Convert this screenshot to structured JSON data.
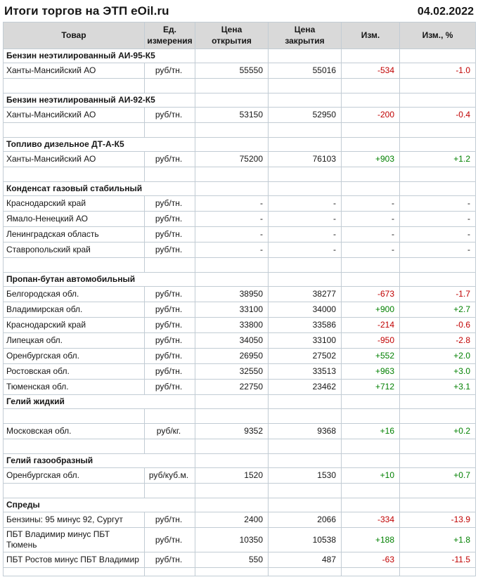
{
  "header": {
    "title": "Итоги торгов на ЭТП eOil.ru",
    "date": "04.02.2022"
  },
  "colors": {
    "negative": "#c00000",
    "positive": "#008000"
  },
  "table": {
    "columns": [
      "Товар",
      "Ед.\nизмерения",
      "Цена\nоткрытия",
      "Цена\nзакрытия",
      "Изм.",
      "Изм., %"
    ],
    "sections": [
      {
        "name": "Бензин неэтилированный АИ-95-К5",
        "spacer_before": false,
        "spacer_after_name": false,
        "rows": [
          {
            "product": "Ханты-Мансийский АО",
            "unit": "руб/тн.",
            "open": "55550",
            "close": "55016",
            "change": "-534",
            "change_pct": "-1.0"
          }
        ]
      },
      {
        "name": "Бензин неэтилированный АИ-92-К5",
        "spacer_before": true,
        "spacer_after_name": false,
        "rows": [
          {
            "product": "Ханты-Мансийский АО",
            "unit": "руб/тн.",
            "open": "53150",
            "close": "52950",
            "change": "-200",
            "change_pct": "-0.4"
          }
        ]
      },
      {
        "name": "Топливо дизельное ДТ-А-К5",
        "spacer_before": true,
        "spacer_after_name": false,
        "rows": [
          {
            "product": "Ханты-Мансийский АО",
            "unit": "руб/тн.",
            "open": "75200",
            "close": "76103",
            "change": "+903",
            "change_pct": "+1.2"
          }
        ]
      },
      {
        "name": "Конденсат газовый стабильный",
        "spacer_before": true,
        "spacer_after_name": false,
        "rows": [
          {
            "product": "Краснодарский край",
            "unit": "руб/тн.",
            "open": "-",
            "close": "-",
            "change": "-",
            "change_pct": "-"
          },
          {
            "product": "Ямало-Ненецкий АО",
            "unit": "руб/тн.",
            "open": "-",
            "close": "-",
            "change": "-",
            "change_pct": "-"
          },
          {
            "product": "Ленинградская область",
            "unit": "руб/тн.",
            "open": "-",
            "close": "-",
            "change": "-",
            "change_pct": "-"
          },
          {
            "product": "Ставропольский край",
            "unit": "руб/тн.",
            "open": "-",
            "close": "-",
            "change": "-",
            "change_pct": "-"
          }
        ]
      },
      {
        "name": "Пропан-бутан автомобильный",
        "spacer_before": true,
        "spacer_after_name": false,
        "rows": [
          {
            "product": "Белгородская обл.",
            "unit": "руб/тн.",
            "open": "38950",
            "close": "38277",
            "change": "-673",
            "change_pct": "-1.7"
          },
          {
            "product": "Владимирская обл.",
            "unit": "руб/тн.",
            "open": "33100",
            "close": "34000",
            "change": "+900",
            "change_pct": "+2.7"
          },
          {
            "product": "Краснодарский край",
            "unit": "руб/тн.",
            "open": "33800",
            "close": "33586",
            "change": "-214",
            "change_pct": "-0.6"
          },
          {
            "product": "Липецкая обл.",
            "unit": "руб/тн.",
            "open": "34050",
            "close": "33100",
            "change": "-950",
            "change_pct": "-2.8"
          },
          {
            "product": "Оренбургская обл.",
            "unit": "руб/тн.",
            "open": "26950",
            "close": "27502",
            "change": "+552",
            "change_pct": "+2.0"
          },
          {
            "product": "Ростовская обл.",
            "unit": "руб/тн.",
            "open": "32550",
            "close": "33513",
            "change": "+963",
            "change_pct": "+3.0"
          },
          {
            "product": "Тюменская обл.",
            "unit": "руб/тн.",
            "open": "22750",
            "close": "23462",
            "change": "+712",
            "change_pct": "+3.1"
          }
        ]
      },
      {
        "name": "Гелий жидкий",
        "spacer_before": false,
        "spacer_after_name": true,
        "rows": [
          {
            "product": "Московская обл.",
            "unit": "руб/кг.",
            "open": "9352",
            "close": "9368",
            "change": "+16",
            "change_pct": "+0.2"
          }
        ]
      },
      {
        "name": "Гелий газообразный",
        "spacer_before": true,
        "spacer_after_name": false,
        "rows": [
          {
            "product": "Оренбургская обл.",
            "unit": "руб/куб.м.",
            "open": "1520",
            "close": "1530",
            "change": "+10",
            "change_pct": "+0.7"
          }
        ]
      },
      {
        "name": "Спреды",
        "spacer_before": true,
        "spacer_after_name": false,
        "rows": [
          {
            "product": "Бензины: 95 минус 92, Сургут",
            "unit": "руб/тн.",
            "open": "2400",
            "close": "2066",
            "change": "-334",
            "change_pct": "-13.9"
          },
          {
            "product": "ПБТ Владимир минус ПБТ Тюмень",
            "unit": "руб/тн.",
            "open": "10350",
            "close": "10538",
            "change": "+188",
            "change_pct": "+1.8"
          },
          {
            "product": "ПБТ Ростов минус ПБТ Владимир",
            "unit": "руб/тн.",
            "open": "550",
            "close": "487",
            "change": "-63",
            "change_pct": "-11.5"
          }
        ]
      }
    ]
  }
}
